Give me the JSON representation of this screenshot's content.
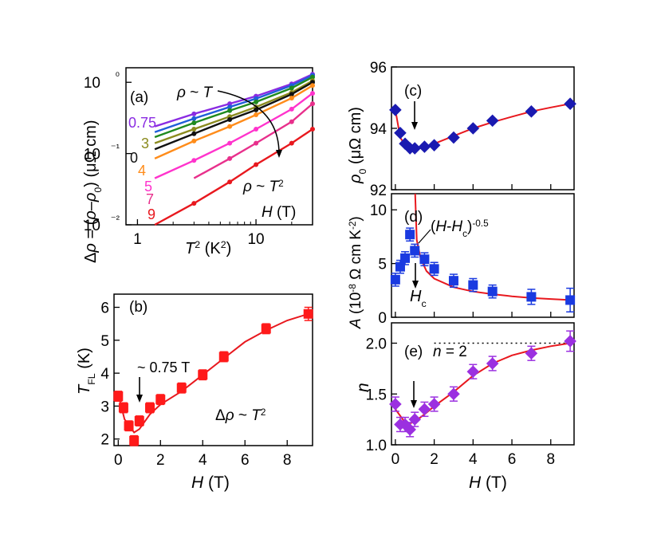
{
  "colors": {
    "fit": "#e8181e",
    "b_marker": "#ff1a1a",
    "c_marker": "#1a1ab0",
    "d_marker": "#1a3ae0",
    "e_marker": "#9b30e0",
    "curve_075": "#8a2be2",
    "curve_1": "#1f5fd8",
    "curve_15": "#1f8a1f",
    "curve_3": "#8b8b1f",
    "curve_0": "#111111",
    "curve_4": "#ff8c1a",
    "curve_5": "#ff33cc",
    "curve_7": "#e8308c",
    "curve_9": "#e8181e"
  },
  "chart_data": [
    {
      "panel": "a",
      "type": "line",
      "panel_label": "(a)",
      "xlabel": "T² (K²)",
      "ylabel": "Δρ = (ρ−ρ₀) (μΩ cm)",
      "x_scale": "log",
      "y_scale": "log",
      "xlim": [
        0.8,
        30
      ],
      "ylim": [
        0.01,
        1.6
      ],
      "x_ticks": [
        1,
        10
      ],
      "x_tick_labels": [
        "1",
        "10"
      ],
      "y_ticks": [
        0.01,
        0.1,
        1
      ],
      "y_tick_labels": [
        "10⁻²",
        "10⁻¹",
        "10⁰"
      ],
      "annotations": {
        "top": "ρ ~ T",
        "bottom": "ρ ~ T²",
        "legend_title": "H (T)"
      },
      "series": [
        {
          "name": "0.75",
          "color_key": "curve_075",
          "x": [
            1.4,
            3,
            6,
            10,
            20,
            30
          ],
          "y": [
            0.24,
            0.36,
            0.5,
            0.64,
            0.95,
            1.3
          ]
        },
        {
          "name": "",
          "color_key": "curve_1",
          "x": [
            1.4,
            3,
            6,
            10,
            20,
            30
          ],
          "y": [
            0.2,
            0.31,
            0.45,
            0.59,
            0.9,
            1.25
          ]
        },
        {
          "name": "",
          "color_key": "curve_15",
          "x": [
            1.4,
            3,
            6,
            10,
            20,
            30
          ],
          "y": [
            0.17,
            0.27,
            0.4,
            0.53,
            0.83,
            1.18
          ]
        },
        {
          "name": "3",
          "color_key": "curve_3",
          "x": [
            1.4,
            3,
            6,
            10,
            20,
            30
          ],
          "y": [
            0.14,
            0.22,
            0.33,
            0.45,
            0.72,
            1.05
          ]
        },
        {
          "name": "0",
          "color_key": "curve_0",
          "x": [
            1.4,
            3,
            6,
            10,
            20,
            30
          ],
          "y": [
            0.115,
            0.19,
            0.3,
            0.41,
            0.68,
            1.0
          ]
        },
        {
          "name": "4",
          "color_key": "curve_4",
          "x": [
            1.4,
            3,
            6,
            10,
            20,
            30
          ],
          "y": [
            0.085,
            0.15,
            0.24,
            0.35,
            0.6,
            0.9
          ]
        },
        {
          "name": "5",
          "color_key": "curve_5",
          "x": [
            1.4,
            3,
            6,
            10,
            20,
            30
          ],
          "y": [
            0.045,
            0.08,
            0.14,
            0.22,
            0.42,
            0.7
          ]
        },
        {
          "name": "7",
          "color_key": "curve_7",
          "x": [
            3,
            6,
            10,
            20,
            30
          ],
          "y": [
            0.045,
            0.085,
            0.14,
            0.28,
            0.5
          ]
        },
        {
          "name": "9",
          "color_key": "curve_9",
          "x": [
            1.4,
            3,
            6,
            10,
            20,
            30
          ],
          "y": [
            0.01,
            0.02,
            0.04,
            0.07,
            0.14,
            0.22
          ]
        }
      ]
    },
    {
      "panel": "b",
      "type": "scatter",
      "panel_label": "(b)",
      "xlabel": "H (T)",
      "ylabel": "T_FL (K)",
      "xlim": [
        -0.2,
        9.2
      ],
      "ylim": [
        1.8,
        6.4
      ],
      "x_ticks": [
        0,
        2,
        4,
        6,
        8
      ],
      "y_ticks": [
        2,
        3,
        4,
        5,
        6
      ],
      "annotations": {
        "arrow": "~ 0.75 T",
        "law": "Δρ ~ T²"
      },
      "points": {
        "x": [
          0,
          0.25,
          0.5,
          0.75,
          1,
          1.5,
          2,
          3,
          4,
          5,
          7,
          9
        ],
        "y": [
          3.3,
          2.95,
          2.4,
          1.95,
          2.55,
          2.95,
          3.2,
          3.55,
          3.95,
          4.5,
          5.35,
          5.8
        ],
        "err": [
          0.15,
          0.15,
          0.15,
          0.15,
          0.15,
          0.15,
          0.15,
          0.15,
          0.15,
          0.15,
          0.15,
          0.2
        ]
      },
      "fit": {
        "x": [
          0,
          0.3,
          0.75,
          1,
          1.5,
          2,
          3,
          4,
          5,
          6,
          7,
          8,
          9
        ],
        "y": [
          3.35,
          2.6,
          2.2,
          2.3,
          2.75,
          3.05,
          3.45,
          3.95,
          4.45,
          4.95,
          5.3,
          5.6,
          5.8
        ]
      }
    },
    {
      "panel": "c",
      "type": "scatter",
      "panel_label": "(c)",
      "xlabel": "",
      "ylabel": "ρ₀ (μΩ cm)",
      "xlim": [
        -0.2,
        9.2
      ],
      "ylim": [
        92,
        96
      ],
      "y_ticks": [
        92,
        94,
        96
      ],
      "points": {
        "x": [
          0,
          0.25,
          0.5,
          0.75,
          1,
          1.5,
          2,
          3,
          4,
          5,
          7,
          9
        ],
        "y": [
          94.6,
          93.85,
          93.5,
          93.35,
          93.35,
          93.4,
          93.45,
          93.7,
          94.0,
          94.25,
          94.55,
          94.8
        ]
      },
      "fit": {
        "x": [
          0,
          0.25,
          0.5,
          0.75,
          1,
          1.5,
          2,
          3,
          4,
          5,
          6,
          7,
          8,
          9
        ],
        "y": [
          94.6,
          93.7,
          93.45,
          93.35,
          93.32,
          93.38,
          93.5,
          93.75,
          94.0,
          94.2,
          94.38,
          94.55,
          94.68,
          94.8
        ]
      }
    },
    {
      "panel": "d",
      "type": "scatter",
      "panel_label": "(d)",
      "xlabel": "",
      "ylabel": "A (10⁻⁸ Ω cm K⁻²)",
      "xlim": [
        -0.2,
        9.2
      ],
      "ylim": [
        0,
        11.5
      ],
      "y_ticks": [
        0,
        5,
        10
      ],
      "annotations": {
        "fit_label": "(H-H_c)^-0.5",
        "arrow": "H_c"
      },
      "points": {
        "x": [
          0,
          0.25,
          0.5,
          0.75,
          1,
          1.5,
          2,
          3,
          4,
          5,
          7,
          9
        ],
        "y": [
          3.5,
          4.7,
          5.5,
          7.7,
          6.2,
          5.4,
          4.5,
          3.4,
          3.0,
          2.4,
          1.9,
          1.6
        ],
        "err": [
          0.6,
          0.6,
          0.6,
          0.6,
          0.6,
          0.6,
          0.6,
          0.6,
          0.6,
          0.6,
          0.7,
          1.1
        ]
      },
      "fit": {
        "x": [
          1.02,
          1.1,
          1.3,
          1.6,
          2,
          3,
          4,
          5,
          6,
          7,
          8,
          9
        ],
        "y": [
          11.5,
          7.2,
          5.5,
          4.3,
          3.6,
          2.8,
          2.4,
          2.15,
          1.95,
          1.8,
          1.7,
          1.6
        ]
      }
    },
    {
      "panel": "e",
      "type": "scatter",
      "panel_label": "(e)",
      "xlabel": "H (T)",
      "ylabel": "n",
      "xlim": [
        -0.2,
        9.2
      ],
      "ylim": [
        1.0,
        2.2
      ],
      "x_ticks": [
        0,
        2,
        4,
        6,
        8
      ],
      "y_ticks": [
        1.0,
        1.5,
        2.0
      ],
      "annotations": {
        "reference": "n = 2"
      },
      "points": {
        "x": [
          0,
          0.25,
          0.5,
          0.75,
          1,
          1.5,
          2,
          3,
          4,
          5,
          7,
          9
        ],
        "y": [
          1.4,
          1.2,
          1.2,
          1.15,
          1.25,
          1.35,
          1.4,
          1.5,
          1.72,
          1.8,
          1.9,
          2.02
        ],
        "err": [
          0.07,
          0.07,
          0.07,
          0.07,
          0.07,
          0.07,
          0.07,
          0.07,
          0.07,
          0.07,
          0.07,
          0.1
        ]
      },
      "fit": {
        "x": [
          0,
          0.5,
          0.75,
          1,
          1.5,
          2,
          3,
          4,
          5,
          6,
          7,
          8,
          9
        ],
        "y": [
          1.35,
          1.22,
          1.21,
          1.23,
          1.3,
          1.38,
          1.52,
          1.68,
          1.8,
          1.88,
          1.93,
          1.97,
          2.0
        ]
      },
      "reference_line": {
        "y": 2.0,
        "x_from": 2.0,
        "x_to": 9.2
      }
    }
  ]
}
